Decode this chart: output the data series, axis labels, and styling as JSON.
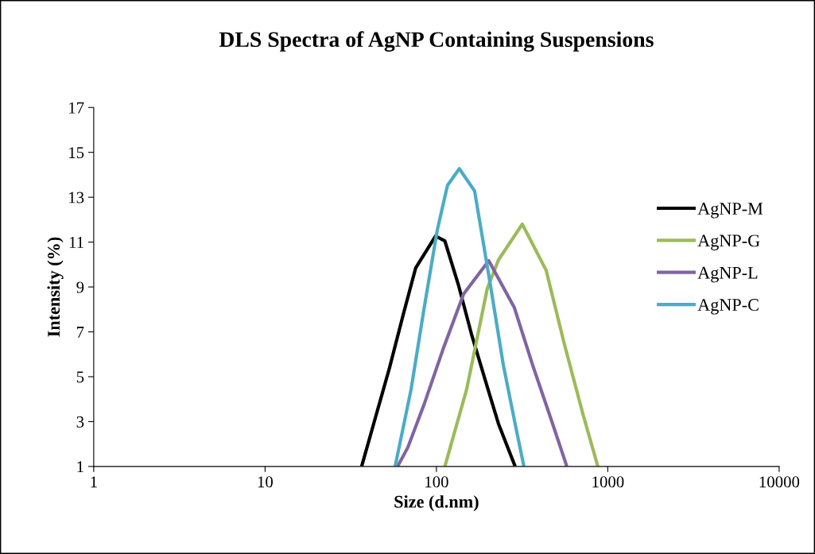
{
  "chart_data": {
    "type": "line",
    "title": "DLS Spectra of AgNP Containing Suspensions",
    "xlabel": "Size (d.nm)",
    "ylabel": "Intensity (%)",
    "log": "x",
    "xlim": [
      1,
      10000
    ],
    "xticks": [
      1,
      10,
      100,
      1000,
      10000
    ],
    "ylim": [
      1,
      17
    ],
    "yticks": [
      1,
      3,
      5,
      7,
      9,
      11,
      13,
      15,
      17
    ],
    "grid": false,
    "legend": "right",
    "marker": "none",
    "line_style": "solid",
    "series": [
      {
        "name": "AgNP-M",
        "color": "#000000",
        "x": [
          36.6,
          44.4,
          53.2,
          63.8,
          75.7,
          98.9,
          112,
          135,
          160,
          192,
          230,
          288
        ],
        "values": [
          1,
          3.27,
          5.39,
          7.73,
          9.85,
          11.27,
          11.05,
          9.04,
          6.91,
          4.89,
          2.91,
          1
        ]
      },
      {
        "name": "AgNP-G",
        "color": "#9bbb59",
        "x": [
          112,
          150,
          198,
          230,
          317,
          437,
          558,
          714,
          875
        ],
        "values": [
          1,
          4.43,
          8.93,
          10.2,
          11.8,
          9.74,
          6.45,
          3.37,
          1
        ]
      },
      {
        "name": "AgNP-L",
        "color": "#8064a2",
        "x": [
          59.3,
          68.1,
          84.4,
          109,
          144,
          202,
          285,
          365,
          466,
          577
        ],
        "values": [
          1,
          1.85,
          3.73,
          6.2,
          8.68,
          10.17,
          8.08,
          5.5,
          3.12,
          1
        ]
      },
      {
        "name": "AgNP-C",
        "color": "#4bacc6",
        "x": [
          57.4,
          71.1,
          84.4,
          101,
          116,
          136,
          167,
          207,
          246,
          294,
          324
        ],
        "values": [
          1,
          4.43,
          7.97,
          11.51,
          13.53,
          14.27,
          13.28,
          9.04,
          5.5,
          2.56,
          1
        ]
      }
    ]
  }
}
